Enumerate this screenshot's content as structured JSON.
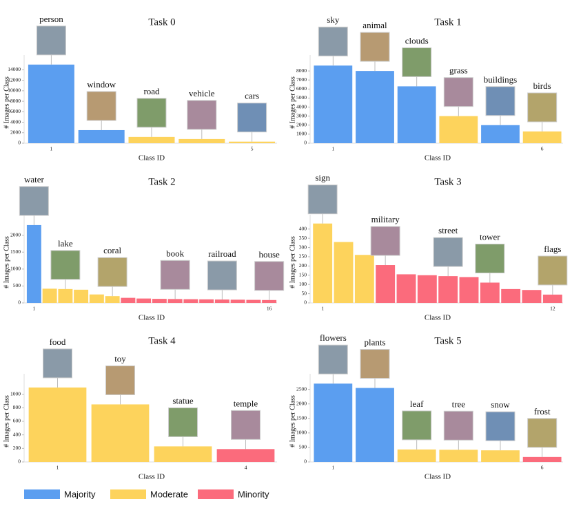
{
  "chart_data": [
    {
      "type": "bar",
      "title": "Task 0",
      "y_label": "# Images per Class",
      "x_label": "Class ID",
      "categories": [
        "1",
        null,
        null,
        null,
        "5"
      ],
      "values": [
        15000,
        2500,
        1200,
        800,
        300
      ],
      "colors": [
        "#5b9ef0",
        "#5b9ef0",
        "#fdd35c",
        "#fdd35c",
        "#fdd35c"
      ],
      "bar_labels": [
        "person",
        "window",
        "road",
        "vehicle",
        "cars"
      ],
      "ylim": [
        0,
        15500
      ],
      "yticks": [
        0,
        2000,
        4000,
        6000,
        8000,
        10000,
        12000,
        14000
      ]
    },
    {
      "type": "bar",
      "title": "Task 1",
      "y_label": "# Images per Class",
      "x_label": "Class ID",
      "categories": [
        "1",
        null,
        null,
        null,
        null,
        "6"
      ],
      "values": [
        8600,
        8000,
        6300,
        3000,
        2000,
        1300
      ],
      "colors": [
        "#5b9ef0",
        "#5b9ef0",
        "#5b9ef0",
        "#fdd35c",
        "#5b9ef0",
        "#fdd35c"
      ],
      "bar_labels": [
        "sky",
        "animal",
        "clouds",
        "grass",
        "buildings",
        "birds"
      ],
      "ylim": [
        0,
        9000
      ],
      "yticks": [
        0,
        1000,
        2000,
        3000,
        4000,
        5000,
        6000,
        7000,
        8000
      ]
    },
    {
      "type": "bar",
      "title": "Task 2",
      "y_label": "# Images per Class",
      "x_label": "Class ID",
      "categories": [
        "1",
        null,
        null,
        null,
        null,
        null,
        null,
        null,
        null,
        null,
        null,
        null,
        null,
        null,
        null,
        "16"
      ],
      "values": [
        2300,
        420,
        410,
        390,
        250,
        200,
        150,
        130,
        120,
        115,
        110,
        105,
        100,
        95,
        90,
        85
      ],
      "colors": [
        "#5b9ef0",
        "#fdd35c",
        "#fdd35c",
        "#fdd35c",
        "#fdd35c",
        "#fdd35c",
        "#fb6b7c",
        "#fb6b7c",
        "#fb6b7c",
        "#fb6b7c",
        "#fb6b7c",
        "#fb6b7c",
        "#fb6b7c",
        "#fb6b7c",
        "#fb6b7c",
        "#fb6b7c"
      ],
      "bar_labels": [
        "water",
        null,
        "lake",
        null,
        null,
        "coral",
        null,
        null,
        null,
        "book",
        null,
        null,
        "railroad",
        null,
        null,
        "house"
      ],
      "ylim": [
        0,
        2400
      ],
      "yticks": [
        0,
        500,
        1000,
        1500,
        2000
      ]
    },
    {
      "type": "bar",
      "title": "Task 3",
      "y_label": "# Images per Class",
      "x_label": "Class ID",
      "categories": [
        "1",
        null,
        null,
        null,
        null,
        null,
        null,
        null,
        null,
        null,
        null,
        "12"
      ],
      "values": [
        430,
        330,
        260,
        205,
        155,
        150,
        145,
        140,
        110,
        75,
        70,
        45
      ],
      "colors": [
        "#fdd35c",
        "#fdd35c",
        "#fdd35c",
        "#fb6b7c",
        "#fb6b7c",
        "#fb6b7c",
        "#fb6b7c",
        "#fb6b7c",
        "#fb6b7c",
        "#fb6b7c",
        "#fb6b7c",
        "#fb6b7c"
      ],
      "bar_labels": [
        "sign",
        null,
        null,
        "military",
        null,
        null,
        "street",
        null,
        "tower",
        null,
        null,
        "flags"
      ],
      "ylim": [
        0,
        440
      ],
      "yticks": [
        0,
        50,
        100,
        150,
        200,
        250,
        300,
        350,
        400
      ]
    },
    {
      "type": "bar",
      "title": "Task 4",
      "y_label": "# Images per Class",
      "x_label": "Class ID",
      "categories": [
        "1",
        null,
        null,
        "4"
      ],
      "values": [
        1100,
        850,
        230,
        190
      ],
      "colors": [
        "#fdd35c",
        "#fdd35c",
        "#fdd35c",
        "#fb6b7c"
      ],
      "bar_labels": [
        "food",
        "toy",
        "statue",
        "temple"
      ],
      "ylim": [
        0,
        1200
      ],
      "yticks": [
        0,
        200,
        400,
        600,
        800,
        1000
      ]
    },
    {
      "type": "bar",
      "title": "Task 5",
      "y_label": "# Images per Class",
      "x_label": "Class ID",
      "categories": [
        "1",
        null,
        null,
        null,
        null,
        "6"
      ],
      "values": [
        2700,
        2550,
        430,
        420,
        400,
        170
      ],
      "colors": [
        "#5b9ef0",
        "#5b9ef0",
        "#fdd35c",
        "#fdd35c",
        "#fdd35c",
        "#fb6b7c"
      ],
      "bar_labels": [
        "flowers",
        "plants",
        "leaf",
        "tree",
        "snow",
        "frost"
      ],
      "ylim": [
        0,
        2800
      ],
      "yticks": [
        0,
        500,
        1000,
        1500,
        2000,
        2500
      ]
    }
  ],
  "legend": [
    {
      "name": "Majority",
      "color": "#5b9ef0"
    },
    {
      "name": "Moderate",
      "color": "#fdd35c"
    },
    {
      "name": "Minority",
      "color": "#fb6b7c"
    }
  ]
}
